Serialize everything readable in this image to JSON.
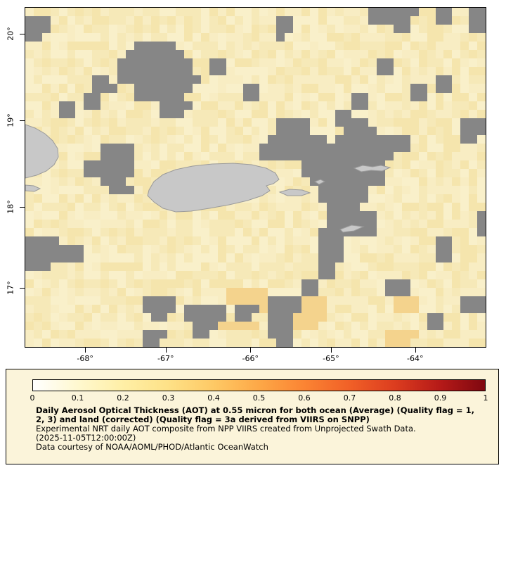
{
  "map": {
    "no_data_color": "#868686",
    "land_color": "#c8c8c8",
    "land_outline": "#9a9a9a",
    "base_shades": [
      "#f8edc3",
      "#f6e9b8",
      "#f9f0ca",
      "#f5e5ad"
    ],
    "cell_colors": {
      "g": "#868686",
      "o": "#f4d38d",
      ",": "#f3e2a8"
    },
    "y_axis": {
      "labels": [
        {
          "text": "20°",
          "pos": 7.7
        },
        {
          "text": "19°",
          "pos": 33.2
        },
        {
          "text": "18°",
          "pos": 58.7
        },
        {
          "text": "17°",
          "pos": 82.6
        }
      ]
    },
    "x_axis": {
      "labels": [
        {
          "text": "-68°",
          "pos": 13.0
        },
        {
          "text": "-67°",
          "pos": 30.5
        },
        {
          "text": "-66°",
          "pos": 48.9
        },
        {
          "text": "-65°",
          "pos": 66.4
        },
        {
          "text": "-64°",
          "pos": 84.7
        }
      ]
    },
    "grid": {
      "cols": 55,
      "rows": 40,
      "cells": [
        ".........................................gggggg..gg..gg",
        "ggg...........................gg.........ggggg...gg..gg",
        "ggg...........................gg............gg.......gg",
        "gg............................g........................",
        ".............ggggg.....................................",
        "............ggggggg....................................",
        "...........ggggggggg..gg..................gg...........",
        "...........ggggggggg..gg..................gg...........",
        "........gg.gggggggggg............................gg....",
        "........ggg..ggggggg......gg..................gg.gg....",
        ".......gg....gggggg.......gg...........gg.....gg.......",
        "....gg.gg.......gggg...................gg..............",
        "....gg..........ggg..................gg................",
        "..............................gggg...gggg...........ggg",
        "..............................gggg....gggg..........ggg",
        ".............................ggggggg.ggggggggg......gg.",
        ".........gggg...............gggggggggggggggggg.........",
        ".........gggg...............gggggggggggggggg...........",
        ".......gggggg....................gggggggggg............",
        ".......gggggg....................gggggggggg............",
        ".........ggg......................ggggggggg............",
        "..........ggg......................gggggg..............",
        "...................................gggggg..............",
        "....................................gggg...............",
        "....................................gggggg............g",
        "....................................gggggg............g",
        "...................................ggggggg............g",
        "gggg...............................ggg...........gg....",
        "ggggggg............................ggg...........gg....",
        "ggggggg............................ggg...........gg....",
        "ggg................................gg..................",
        "...................................gg..................",
        ".................................gg........ggg.........",
        "........................ooooo....gg........ggg.........",
        "..............gggg......oooooggggooo........ooo.....ggg",
        "..............gggg.ggggg.gggoggggooo........ooo.....ggg",
        "...............gg..ggggg.gg..gggoooo............gg.....",
        "....................gggooooo.gggooo.............gg.....",
        "..............ggg...gg.......ggg...........oooo........",
        "..............gg..............gg...........ooo........."
      ]
    },
    "land_paths": [
      "M 176 259 L 183 247 L 196 237 L 214 230 L 238 225 L 266 222 L 296 221 L 322 223 L 343 228 L 356 235 L 361 244 L 353 250 L 343 253 L 348 260 L 337 267 L 316 274 L 290 280 L 262 285 L 236 289 L 214 290 L 196 285 L 183 276 L 174 267 Z",
      "M 0 166 L 14 171 L 28 179 L 39 189 L 46 200 L 47 212 L 41 223 L 30 232 L 16 238 L 0 242 Z",
      "M 0 252 L 12 253 L 21 257 L 13 261 L 0 260 Z",
      "M 362 262 L 376 258 L 394 259 L 405 263 L 393 267 L 373 267 Z",
      "M 412 247 L 420 244 L 426 247 L 418 251 Z",
      "M 468 228 L 480 224 L 494 226 L 506 224 L 519 227 L 508 232 L 492 231 L 478 233 Z",
      "M 448 315 L 464 309 L 481 311 L 468 317 L 452 319 Z"
    ]
  },
  "legend": {
    "colorbar": {
      "stops": [
        "#ffffff",
        "#fff8cf",
        "#ffefa6",
        "#fee187",
        "#fec965",
        "#fda847",
        "#fb8433",
        "#f16027",
        "#dc3d1f",
        "#b61a18",
        "#7f0810"
      ],
      "tick_labels": [
        "0",
        "0.1",
        "0.2",
        "0.3",
        "0.4",
        "0.5",
        "0.6",
        "0.7",
        "0.8",
        "0.9",
        "1"
      ]
    },
    "title_lines": [
      "Daily Aerosol Optical Thickness (AOT) at 0.55 micron for both ocean (Average) (Quality flag = 1,",
      "2, 3) and land (corrected) (Quality flag = 3a derived from VIIRS on SNPP)"
    ],
    "description_lines": [
      "Experimental NRT daily AOT composite from NPP VIIRS created from Unprojected Swath Data.",
      "(2025-11-05T12:00:00Z)",
      "Data courtesy of NOAA/AOML/PHOD/Atlantic OceanWatch"
    ]
  }
}
